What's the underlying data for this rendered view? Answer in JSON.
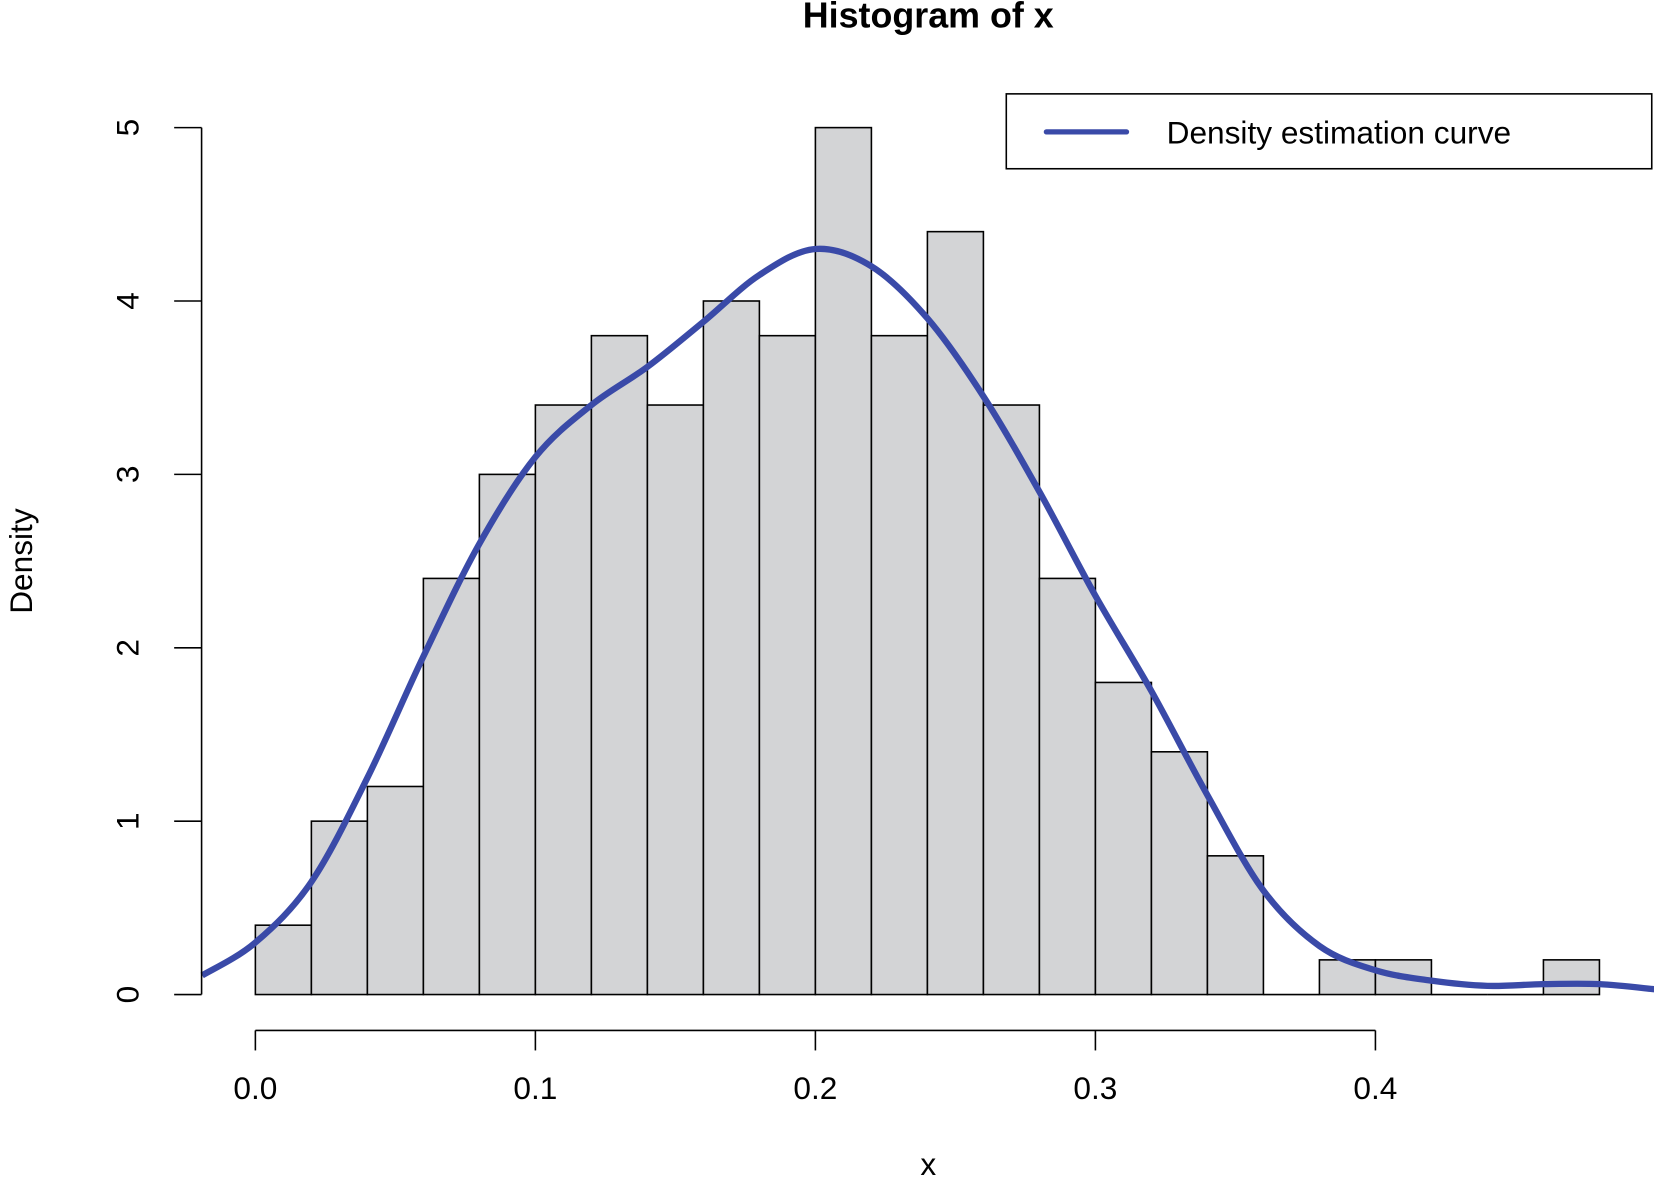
{
  "chart_data": {
    "type": "bar",
    "title": "Histogram of x",
    "xlabel": "x",
    "ylabel": "Density",
    "xlim": [
      -0.02,
      0.5
    ],
    "ylim": [
      0,
      5
    ],
    "grid": false,
    "legend_placement": "top-right",
    "x_ticks": [
      "0.0",
      "0.1",
      "0.2",
      "0.3",
      "0.4"
    ],
    "x_tick_values": [
      0,
      0.1,
      0.2,
      0.3,
      0.4
    ],
    "y_ticks": [
      "0",
      "1",
      "2",
      "3",
      "4",
      "5"
    ],
    "y_tick_values": [
      0,
      1,
      2,
      3,
      4,
      5
    ],
    "bin_width": 0.02,
    "bin_starts": [
      0,
      0.02,
      0.04,
      0.06,
      0.08,
      0.1,
      0.12,
      0.14,
      0.16,
      0.18,
      0.2,
      0.22,
      0.24,
      0.26,
      0.28,
      0.3,
      0.32,
      0.34,
      0.36,
      0.38,
      0.4,
      0.42,
      0.44,
      0.46
    ],
    "values": [
      0.4,
      1.0,
      1.2,
      2.4,
      3.0,
      3.4,
      3.8,
      3.4,
      4.0,
      3.8,
      5.0,
      3.8,
      4.4,
      3.4,
      2.4,
      1.8,
      1.4,
      0.8,
      0,
      0.2,
      0.2,
      0,
      0,
      0.2
    ],
    "bar_color": "#d3d4d6",
    "series": [
      {
        "name": "Density estimation curve",
        "type": "line",
        "color": "#3a4aa8",
        "x": [
          -0.019,
          0,
          0.02,
          0.04,
          0.06,
          0.08,
          0.1,
          0.12,
          0.14,
          0.16,
          0.18,
          0.2,
          0.22,
          0.24,
          0.26,
          0.28,
          0.3,
          0.32,
          0.34,
          0.36,
          0.38,
          0.4,
          0.42,
          0.44,
          0.46,
          0.48,
          0.5
        ],
        "y": [
          0.11,
          0.3,
          0.65,
          1.25,
          1.95,
          2.6,
          3.1,
          3.4,
          3.62,
          3.88,
          4.15,
          4.3,
          4.2,
          3.9,
          3.45,
          2.9,
          2.3,
          1.75,
          1.15,
          0.6,
          0.28,
          0.14,
          0.08,
          0.05,
          0.06,
          0.06,
          0.03
        ]
      }
    ]
  }
}
